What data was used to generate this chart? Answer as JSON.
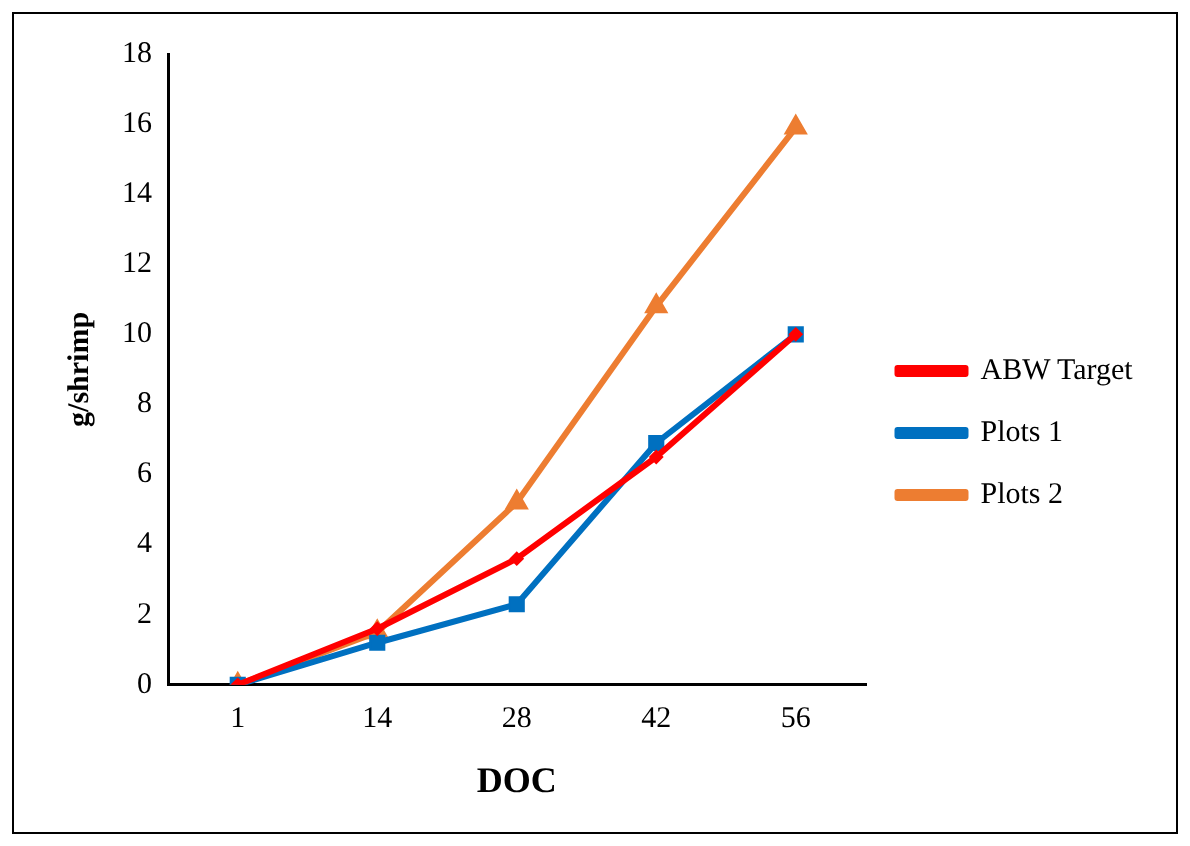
{
  "chart_data": {
    "type": "line",
    "xlabel": "DOC",
    "ylabel": "g/shrimp",
    "categories": [
      "1",
      "14",
      "28",
      "42",
      "56"
    ],
    "series": [
      {
        "name": "ABW Target",
        "color": "#ff0000",
        "marker": "diamond",
        "values": [
          0,
          1.6,
          3.6,
          6.5,
          10
        ]
      },
      {
        "name": "Plots 1",
        "color": "#0070c0",
        "marker": "square",
        "values": [
          0,
          1.2,
          2.3,
          6.9,
          10
        ]
      },
      {
        "name": "Plots 2",
        "color": "#ed7d31",
        "marker": "triangle",
        "values": [
          0,
          1.5,
          5.2,
          10.8,
          15.9
        ]
      }
    ],
    "ylim": [
      0,
      18
    ],
    "yticks": [
      0,
      2,
      4,
      6,
      8,
      10,
      12,
      14,
      16,
      18
    ],
    "grid": false,
    "legend": "right"
  }
}
